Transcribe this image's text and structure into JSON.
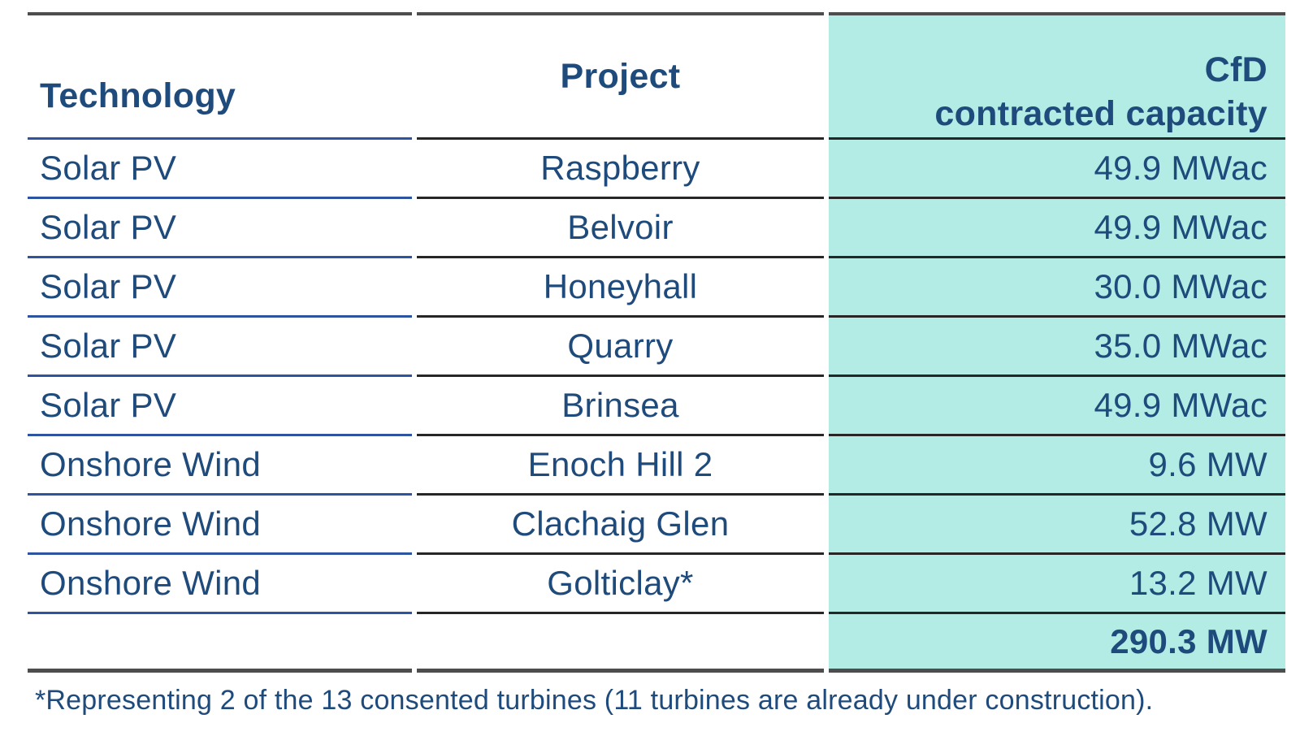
{
  "header": {
    "technology": "Technology",
    "project": "Project",
    "capacity_line1": "CfD",
    "capacity_line2": "contracted capacity"
  },
  "rows": [
    {
      "technology": "Solar PV",
      "project": "Raspberry",
      "capacity": "49.9 MWac"
    },
    {
      "technology": "Solar PV",
      "project": "Belvoir",
      "capacity": "49.9 MWac"
    },
    {
      "technology": "Solar PV",
      "project": "Honeyhall",
      "capacity": "30.0 MWac"
    },
    {
      "technology": "Solar PV",
      "project": "Quarry",
      "capacity": "35.0 MWac"
    },
    {
      "technology": "Solar PV",
      "project": "Brinsea",
      "capacity": "49.9 MWac"
    },
    {
      "technology": "Onshore Wind",
      "project": "Enoch Hill 2",
      "capacity": "9.6 MW"
    },
    {
      "technology": "Onshore Wind",
      "project": "Clachaig Glen",
      "capacity": "52.8 MW"
    },
    {
      "technology": "Onshore Wind",
      "project": "Golticlay*",
      "capacity": "13.2 MW"
    }
  ],
  "total_row": {
    "capacity": "290.3 MW"
  },
  "footnote": "*Representing 2 of the 13 consented turbines (11 turbines are already under construction).",
  "chart_data": {
    "type": "table",
    "columns": [
      "Technology",
      "Project",
      "CfD contracted capacity"
    ],
    "rows": [
      [
        "Solar PV",
        "Raspberry",
        "49.9 MWac"
      ],
      [
        "Solar PV",
        "Belvoir",
        "49.9 MWac"
      ],
      [
        "Solar PV",
        "Honeyhall",
        "30.0 MWac"
      ],
      [
        "Solar PV",
        "Quarry",
        "35.0 MWac"
      ],
      [
        "Solar PV",
        "Brinsea",
        "49.9 MWac"
      ],
      [
        "Onshore Wind",
        "Enoch Hill 2",
        "9.6 MW"
      ],
      [
        "Onshore Wind",
        "Clachaig Glen",
        "52.8 MW"
      ],
      [
        "Onshore Wind",
        "Golticlay*",
        "13.2 MW"
      ]
    ],
    "total": "290.3 MW"
  },
  "colors": {
    "navy": "#1e4b7b",
    "teal": "#b2ece4",
    "blue_line": "#2e539f",
    "dark_line": "#262626",
    "border": "#4d4d4d",
    "background": "#ffffff"
  }
}
